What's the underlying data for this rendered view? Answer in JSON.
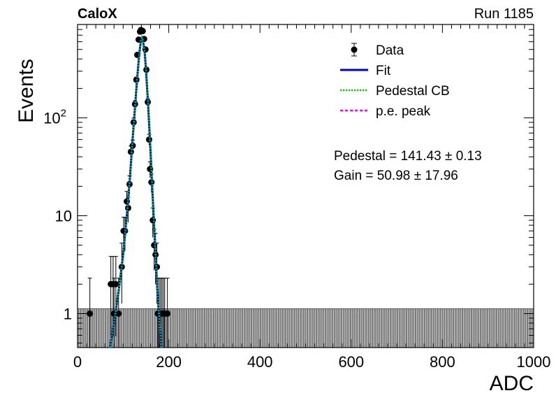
{
  "header": {
    "left": "CaloX",
    "right": "Run 1185"
  },
  "chart_data": {
    "type": "scatter",
    "xlabel": "ADC",
    "ylabel": "Events",
    "xlim": [
      0,
      1000
    ],
    "ylim": [
      0.45,
      900
    ],
    "log_y": true,
    "grid": false,
    "legend_position": "top-right",
    "x_ticks": [
      {
        "value": 0,
        "label": "0"
      },
      {
        "value": 200,
        "label": "200"
      },
      {
        "value": 400,
        "label": "400"
      },
      {
        "value": 600,
        "label": "600"
      },
      {
        "value": 800,
        "label": "800"
      },
      {
        "value": 1000,
        "label": "1000"
      }
    ],
    "y_ticks": [
      {
        "value": 1,
        "label": "1"
      },
      {
        "value": 10,
        "label": "10"
      },
      {
        "value": 100,
        "label": "10",
        "sup": "2"
      }
    ],
    "legend": [
      {
        "label": "Data",
        "marker": "point-errorbar",
        "color": "#000000"
      },
      {
        "label": "Fit",
        "marker": "solid-line",
        "color": "#0000cc"
      },
      {
        "label": "Pedestal CB",
        "marker": "dotted-line",
        "color": "#00cc00"
      },
      {
        "label": "p.e. peak",
        "marker": "dashed-line",
        "color": "#ff00ff"
      }
    ],
    "annotations": [
      {
        "text": "Pedestal = 141.43 ± 0.13"
      },
      {
        "text": "Gain = 50.98 ± 17.96"
      }
    ],
    "series": [
      {
        "name": "Data",
        "style": "points-with-errors",
        "color": "#000000",
        "x": [
          27,
          73,
          78,
          80,
          84,
          90,
          97,
          101,
          104,
          108,
          111,
          114,
          117,
          121,
          123,
          126,
          129,
          131,
          134,
          137,
          139,
          141,
          143,
          146,
          149,
          151,
          154,
          157,
          159,
          162,
          165,
          168,
          171,
          174,
          176,
          179,
          182,
          185,
          188,
          191,
          197
        ],
        "y": [
          1,
          2,
          2,
          1,
          2,
          1,
          3,
          7,
          7,
          14,
          12,
          21,
          45,
          52,
          90,
          138,
          245,
          440,
          630,
          760,
          790,
          780,
          770,
          640,
          500,
          310,
          145,
          60,
          30,
          22,
          9,
          5,
          4,
          3,
          1,
          1,
          1,
          1,
          1,
          1,
          1
        ]
      },
      {
        "name": "Fit",
        "style": "solid-line",
        "color": "#0000cc",
        "x": [
          71,
          80,
          90,
          100,
          108,
          115,
          120,
          125,
          130,
          135,
          139,
          141,
          143,
          147,
          150,
          155,
          160,
          165,
          170,
          175,
          180,
          184
        ],
        "y": [
          0.45,
          0.8,
          1.7,
          4,
          10,
          25,
          55,
          110,
          230,
          440,
          620,
          660,
          630,
          480,
          320,
          130,
          45,
          15,
          5,
          1.7,
          0.8,
          0.45
        ]
      },
      {
        "name": "Pedestal CB",
        "style": "dotted-line",
        "color": "#00cc00",
        "x": [
          71,
          80,
          90,
          100,
          108,
          115,
          120,
          125,
          130,
          135,
          139,
          141,
          143,
          147,
          150,
          155,
          160,
          165,
          170,
          175,
          180,
          184
        ],
        "y": [
          0.45,
          0.8,
          1.7,
          4,
          10,
          25,
          55,
          110,
          230,
          440,
          620,
          660,
          630,
          480,
          320,
          130,
          45,
          15,
          5,
          1.7,
          0.8,
          0.45
        ]
      },
      {
        "name": "p.e. peak",
        "style": "dashed-line",
        "color": "#ff00ff",
        "x": [],
        "y": []
      }
    ]
  }
}
